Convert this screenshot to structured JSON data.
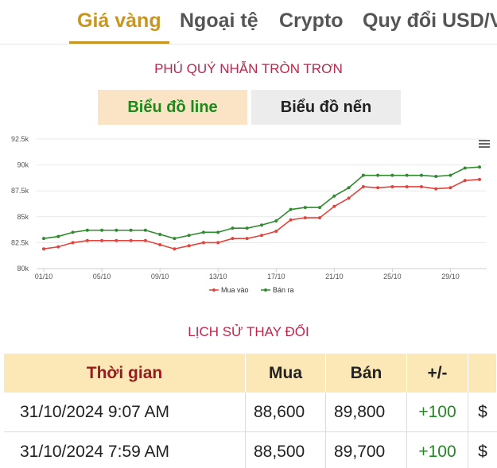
{
  "tabs": [
    {
      "label": "Giá vàng",
      "active": true
    },
    {
      "label": "Ngoại tệ",
      "active": false
    },
    {
      "label": "Crypto",
      "active": false
    },
    {
      "label": "Quy đổi USD/V",
      "active": false
    }
  ],
  "chart_section": {
    "title": "PHÚ QUÝ NHẪN TRÒN TRƠN",
    "toggle_line": "Biểu đồ line",
    "toggle_candle": "Biểu đồ nến",
    "menu_icon": "hamburger-menu-icon"
  },
  "chart_data": {
    "type": "line",
    "x": [
      "01/10",
      "02/10",
      "03/10",
      "04/10",
      "05/10",
      "06/10",
      "07/10",
      "08/10",
      "09/10",
      "10/10",
      "11/10",
      "12/10",
      "13/10",
      "14/10",
      "15/10",
      "16/10",
      "17/10",
      "18/10",
      "19/10",
      "20/10",
      "21/10",
      "22/10",
      "23/10",
      "24/10",
      "25/10",
      "26/10",
      "27/10",
      "28/10",
      "29/10",
      "30/10",
      "31/10"
    ],
    "x_tick_labels": [
      "01/10",
      "05/10",
      "09/10",
      "13/10",
      "17/10",
      "21/10",
      "25/10",
      "29/10"
    ],
    "y_ticks": [
      "80k",
      "82.5k",
      "85k",
      "87.5k",
      "90k",
      "92.5k"
    ],
    "ylim": [
      80000,
      92500
    ],
    "grid": true,
    "legend_position": "bottom-center",
    "series": [
      {
        "name": "Mua vào",
        "color": "#e0443c",
        "values": [
          81900,
          82100,
          82500,
          82700,
          82700,
          82700,
          82700,
          82700,
          82300,
          81900,
          82200,
          82500,
          82500,
          82900,
          82900,
          83200,
          83600,
          84700,
          84900,
          84900,
          86000,
          86800,
          87900,
          87800,
          87900,
          87900,
          87900,
          87700,
          87800,
          88500,
          88600
        ]
      },
      {
        "name": "Bán ra",
        "color": "#2e8b2e",
        "values": [
          82900,
          83100,
          83500,
          83700,
          83700,
          83700,
          83700,
          83700,
          83300,
          82900,
          83200,
          83500,
          83500,
          83900,
          83900,
          84200,
          84600,
          85700,
          85900,
          85900,
          87000,
          87800,
          89000,
          89000,
          89000,
          89000,
          89000,
          88900,
          89000,
          89700,
          89800
        ]
      }
    ]
  },
  "history": {
    "title": "LỊCH SỬ THAY ĐỔI",
    "headers": {
      "time": "Thời gian",
      "buy": "Mua",
      "sell": "Bán",
      "diff": "+/-"
    },
    "rows": [
      {
        "time": "31/10/2024 9:07 AM",
        "buy": "88,600",
        "sell": "89,800",
        "diff": "+100",
        "action": "$"
      },
      {
        "time": "31/10/2024 7:59 AM",
        "buy": "88,500",
        "sell": "89,700",
        "diff": "+100",
        "action": "$"
      }
    ]
  }
}
